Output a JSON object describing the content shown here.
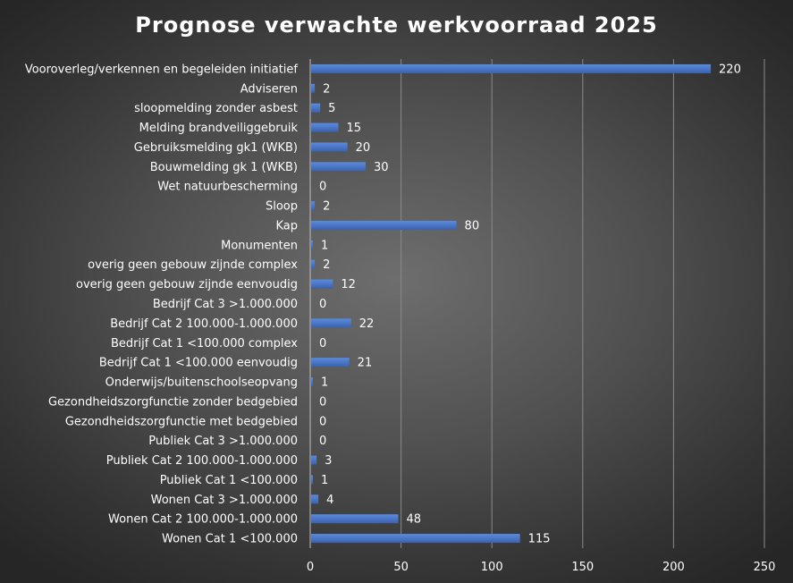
{
  "chart_data": {
    "type": "bar",
    "orientation": "horizontal",
    "title": "Prognose verwachte werkvoorraad 2025",
    "categories": [
      "Vooroverleg/verkennen en begeleiden initiatief",
      "Adviseren",
      "sloopmelding zonder asbest",
      "Melding brandveiliggebruik",
      "Gebruiksmelding gk1 (WKB)",
      "Bouwmelding gk 1 (WKB)",
      "Wet natuurbescherming",
      "Sloop",
      "Kap",
      "Monumenten",
      "overig geen gebouw zijnde complex",
      "overig geen gebouw zijnde eenvoudig",
      "Bedrijf Cat 3 >1.000.000",
      "Bedrijf Cat 2 100.000-1.000.000",
      "Bedrijf Cat 1 <100.000 complex",
      "Bedrijf Cat 1 <100.000 eenvoudig",
      "Onderwijs/buitenschoolseopvang",
      "Gezondheidszorgfunctie zonder bedgebied",
      "Gezondheidszorgfunctie met bedgebied",
      "Publiek Cat 3 >1.000.000",
      "Publiek Cat 2 100.000-1.000.000",
      "Publiek Cat 1 <100.000",
      "Wonen Cat 3 >1.000.000",
      "Wonen Cat 2 100.000-1.000.000",
      "Wonen Cat 1 <100.000"
    ],
    "values": [
      220,
      2,
      5,
      15,
      20,
      30,
      0,
      2,
      80,
      1,
      2,
      12,
      0,
      22,
      0,
      21,
      1,
      0,
      0,
      0,
      3,
      1,
      4,
      48,
      115
    ],
    "xlim": [
      0,
      250
    ],
    "xticks": [
      "0",
      "50",
      "100",
      "150",
      "200",
      "250"
    ],
    "grid": "vertical",
    "legend": "none",
    "bar_color": "#4472c4",
    "background_color": "#4d4d4d"
  }
}
